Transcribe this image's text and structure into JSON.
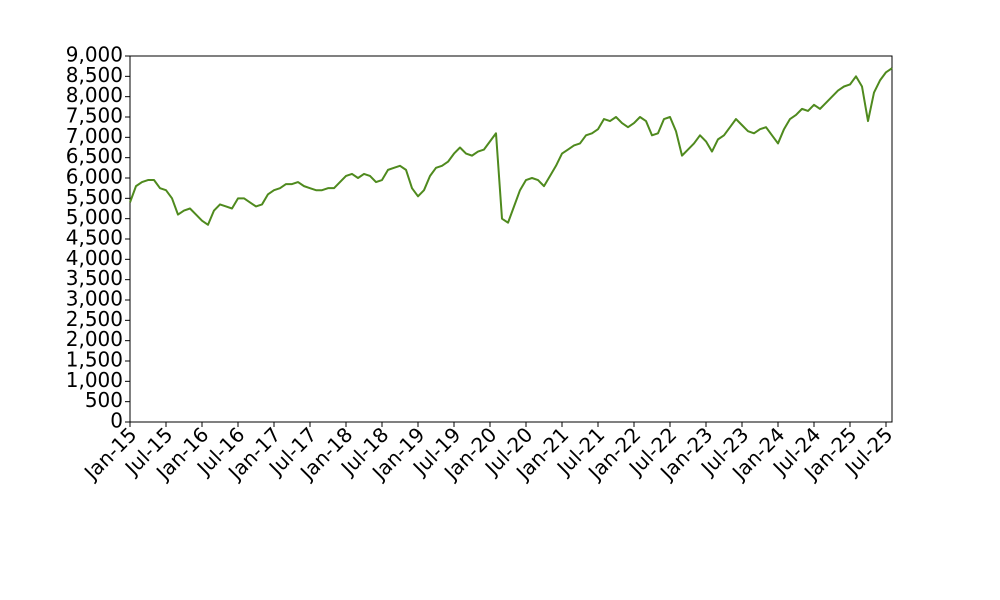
{
  "chart_data": {
    "type": "line",
    "x": [
      "2015-01",
      "2015-02",
      "2015-03",
      "2015-04",
      "2015-05",
      "2015-06",
      "2015-07",
      "2015-08",
      "2015-09",
      "2015-10",
      "2015-11",
      "2015-12",
      "2016-01",
      "2016-02",
      "2016-03",
      "2016-04",
      "2016-05",
      "2016-06",
      "2016-07",
      "2016-08",
      "2016-09",
      "2016-10",
      "2016-11",
      "2016-12",
      "2017-01",
      "2017-02",
      "2017-03",
      "2017-04",
      "2017-05",
      "2017-06",
      "2017-07",
      "2017-08",
      "2017-09",
      "2017-10",
      "2017-11",
      "2017-12",
      "2018-01",
      "2018-02",
      "2018-03",
      "2018-04",
      "2018-05",
      "2018-06",
      "2018-07",
      "2018-08",
      "2018-09",
      "2018-10",
      "2018-11",
      "2018-12",
      "2019-01",
      "2019-02",
      "2019-03",
      "2019-04",
      "2019-05",
      "2019-06",
      "2019-07",
      "2019-08",
      "2019-09",
      "2019-10",
      "2019-11",
      "2019-12",
      "2020-01",
      "2020-02",
      "2020-03",
      "2020-04",
      "2020-05",
      "2020-06",
      "2020-07",
      "2020-08",
      "2020-09",
      "2020-10",
      "2020-11",
      "2020-12",
      "2021-01",
      "2021-02",
      "2021-03",
      "2021-04",
      "2021-05",
      "2021-06",
      "2021-07",
      "2021-08",
      "2021-09",
      "2021-10",
      "2021-11",
      "2021-12",
      "2022-01",
      "2022-02",
      "2022-03",
      "2022-04",
      "2022-05",
      "2022-06",
      "2022-07",
      "2022-08",
      "2022-09",
      "2022-10",
      "2022-11",
      "2022-12",
      "2023-01",
      "2023-02",
      "2023-03",
      "2023-04",
      "2023-05",
      "2023-06",
      "2023-07",
      "2023-08",
      "2023-09",
      "2023-10",
      "2023-11",
      "2023-12",
      "2024-01",
      "2024-02",
      "2024-03",
      "2024-04",
      "2024-05",
      "2024-06",
      "2024-07",
      "2024-08",
      "2024-09",
      "2024-10",
      "2024-11",
      "2024-12",
      "2025-01",
      "2025-02",
      "2025-03",
      "2025-04",
      "2025-05",
      "2025-06",
      "2025-07",
      "2025-08"
    ],
    "series": [
      {
        "color": "#4f8a1e",
        "values": [
          5400,
          5800,
          5900,
          5950,
          5950,
          5750,
          5700,
          5500,
          5100,
          5200,
          5250,
          5100,
          4950,
          4850,
          5200,
          5350,
          5300,
          5250,
          5500,
          5500,
          5400,
          5300,
          5350,
          5600,
          5700,
          5750,
          5850,
          5850,
          5900,
          5800,
          5750,
          5700,
          5700,
          5750,
          5750,
          5900,
          6050,
          6100,
          6000,
          6100,
          6050,
          5900,
          5950,
          6200,
          6250,
          6300,
          6200,
          5750,
          5550,
          5700,
          6050,
          6250,
          6300,
          6400,
          6600,
          6750,
          6600,
          6550,
          6650,
          6700,
          6900,
          7100,
          5000,
          4900,
          5300,
          5700,
          5950,
          6000,
          5950,
          5800,
          6050,
          6300,
          6600,
          6700,
          6800,
          6850,
          7050,
          7100,
          7200,
          7450,
          7400,
          7500,
          7350,
          7250,
          7350,
          7500,
          7400,
          7050,
          7100,
          7450,
          7500,
          7150,
          6550,
          6700,
          6850,
          7050,
          6900,
          6650,
          6950,
          7050,
          7250,
          7450,
          7300,
          7150,
          7100,
          7200,
          7250,
          7050,
          6850,
          7200,
          7450,
          7550,
          7700,
          7650,
          7800,
          7700,
          7850,
          8000,
          8150,
          8250,
          8300,
          8500,
          8250,
          7400,
          8100,
          8400,
          8600,
          8700
        ]
      }
    ],
    "xlim": [
      "2015-01",
      "2025-08"
    ],
    "xticks": [
      {
        "value": "2015-01",
        "label": "Jan-15"
      },
      {
        "value": "2015-07",
        "label": "Jul-15"
      },
      {
        "value": "2016-01",
        "label": "Jan-16"
      },
      {
        "value": "2016-07",
        "label": "Jul-16"
      },
      {
        "value": "2017-01",
        "label": "Jan-17"
      },
      {
        "value": "2017-07",
        "label": "Jul-17"
      },
      {
        "value": "2018-01",
        "label": "Jan-18"
      },
      {
        "value": "2018-07",
        "label": "Jul-18"
      },
      {
        "value": "2019-01",
        "label": "Jan-19"
      },
      {
        "value": "2019-07",
        "label": "Jul-19"
      },
      {
        "value": "2020-01",
        "label": "Jan-20"
      },
      {
        "value": "2020-07",
        "label": "Jul-20"
      },
      {
        "value": "2021-01",
        "label": "Jan-21"
      },
      {
        "value": "2021-07",
        "label": "Jul-21"
      },
      {
        "value": "2022-01",
        "label": "Jan-22"
      },
      {
        "value": "2022-07",
        "label": "Jul-22"
      },
      {
        "value": "2023-01",
        "label": "Jan-23"
      },
      {
        "value": "2023-07",
        "label": "Jul-23"
      },
      {
        "value": "2024-01",
        "label": "Jan-24"
      },
      {
        "value": "2024-07",
        "label": "Jul-24"
      },
      {
        "value": "2025-01",
        "label": "Jan-25"
      },
      {
        "value": "2025-07",
        "label": "Jul-25"
      }
    ],
    "ylim": [
      0,
      9000
    ],
    "yticks": [
      0,
      500,
      {
        "value": 1000,
        "label": "1,000"
      },
      {
        "value": 1500,
        "label": "1,500"
      },
      {
        "value": 2000,
        "label": "2,000"
      },
      {
        "value": 2500,
        "label": "2,500"
      },
      {
        "value": 3000,
        "label": "3,000"
      },
      {
        "value": 3500,
        "label": "3,500"
      },
      {
        "value": 4000,
        "label": "4,000"
      },
      {
        "value": 4500,
        "label": "4,500"
      },
      {
        "value": 5000,
        "label": "5,000"
      },
      {
        "value": 5500,
        "label": "5,500"
      },
      {
        "value": 6000,
        "label": "6,000"
      },
      {
        "value": 6500,
        "label": "6,500"
      },
      {
        "value": 7000,
        "label": "7,000"
      },
      {
        "value": 7500,
        "label": "7,500"
      },
      {
        "value": 8000,
        "label": "8,000"
      },
      {
        "value": 8500,
        "label": "8,500"
      },
      {
        "value": 9000,
        "label": "9,000"
      }
    ],
    "grid": false
  }
}
